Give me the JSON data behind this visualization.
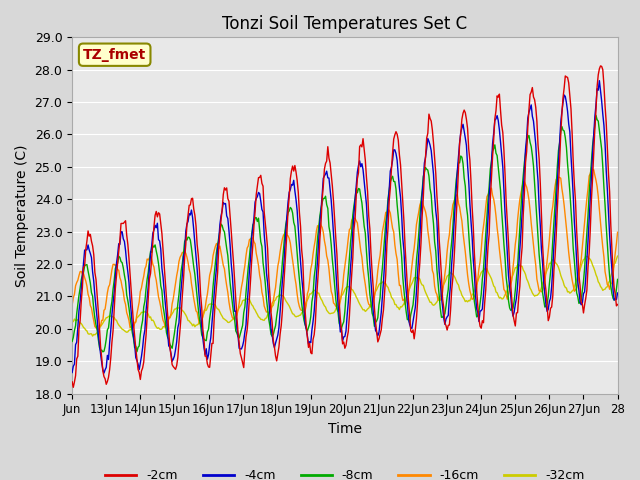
{
  "title": "Tonzi Soil Temperatures Set C",
  "xlabel": "Time",
  "ylabel": "Soil Temperature (C)",
  "ylim": [
    18.0,
    29.0
  ],
  "yticks": [
    18.0,
    19.0,
    20.0,
    21.0,
    22.0,
    23.0,
    24.0,
    25.0,
    26.0,
    27.0,
    28.0,
    29.0
  ],
  "xtick_labels": [
    "Jun",
    "13Jun",
    "14Jun",
    "15Jun",
    "16Jun",
    "17Jun",
    "18Jun",
    "19Jun",
    "20Jun",
    "21Jun",
    "22Jun",
    "23Jun",
    "24Jun",
    "25Jun",
    "26Jun",
    "27Jun",
    "28"
  ],
  "xtick_positions": [
    0,
    1,
    2,
    3,
    4,
    5,
    6,
    7,
    8,
    9,
    10,
    11,
    12,
    13,
    14,
    15,
    16
  ],
  "legend_labels": [
    "-2cm",
    "-4cm",
    "-8cm",
    "-16cm",
    "-32cm"
  ],
  "legend_colors": [
    "#dd0000",
    "#0000cc",
    "#00aa00",
    "#ff8800",
    "#cccc00"
  ],
  "line_colors": [
    "#dd0000",
    "#0000cc",
    "#00aa00",
    "#ff8800",
    "#cccc00"
  ],
  "annotation_text": "TZ_fmet",
  "annotation_color": "#aa0000",
  "annotation_bg": "#ffffcc",
  "annotation_border": "#888800",
  "fig_bg": "#d8d8d8",
  "plot_bg": "#e8e8e8",
  "n_points": 481,
  "t_start": 0.0,
  "t_end": 16.0
}
